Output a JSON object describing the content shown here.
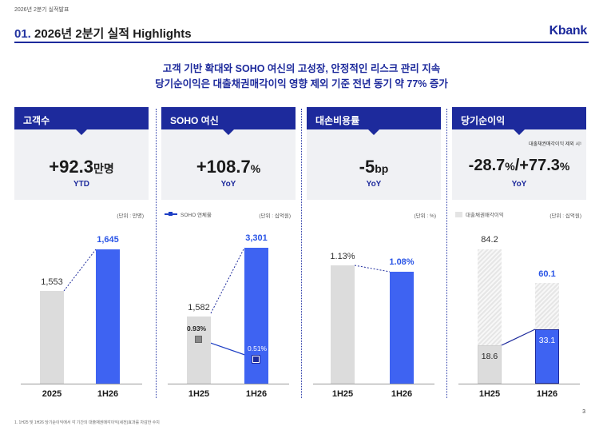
{
  "doc_label": "2026년 2분기 실적발표",
  "header": {
    "num": "01.",
    "title": "2026년 2분기 실적 Highlights",
    "logo": "Kbank"
  },
  "headline": {
    "line1": "고객 기반 확대와 SOHO 여신의 고성장, 안정적인 리스크 관리 지속",
    "line2": "당기순이익은 대출채권매각이익 영향 제외 기준 전년 동기 약 77% 증가"
  },
  "panels": [
    {
      "title": "고객수",
      "kpi_value": "+92.3",
      "kpi_unit": "만명",
      "kpi_sub": "YTD",
      "unit_label": "(단위 : 만명)",
      "chart": {
        "categories": [
          "2025",
          "1H26"
        ],
        "values": [
          1553,
          1645
        ],
        "labels": [
          "1,553",
          "1,645"
        ]
      }
    },
    {
      "title": "SOHO 여신",
      "kpi_value": "+108.7",
      "kpi_unit": "%",
      "kpi_sub": "YoY",
      "unit_label": "(단위 : 십억원)",
      "legend": "SOHO 연체율",
      "chart": {
        "categories": [
          "1H25",
          "1H26"
        ],
        "values": [
          1582,
          3301
        ],
        "labels": [
          "1,582",
          "3,301"
        ],
        "line_values": [
          0.93,
          0.51
        ],
        "line_labels": [
          "0.93%",
          "0.51%"
        ]
      }
    },
    {
      "title": "대손비용률",
      "kpi_value": "-5",
      "kpi_unit": "bp",
      "kpi_sub": "YoY",
      "unit_label": "(단위 : %)",
      "chart": {
        "categories": [
          "1H25",
          "1H26"
        ],
        "values": [
          1.13,
          1.08
        ],
        "labels": [
          "1.13%",
          "1.08%"
        ]
      }
    },
    {
      "title": "당기순이익",
      "kpi_value_a": "-28.7",
      "kpi_unit_a": "%",
      "kpi_sep": "/",
      "kpi_value_b": "+77.3",
      "kpi_unit_b": "%",
      "kpi_sub": "YoY",
      "kpi_note": "대출채권매각이익 제외 시¹",
      "unit_label": "(단위 : 십억원)",
      "legend": "대출채권매각이익",
      "chart": {
        "categories": [
          "1H25",
          "1H26"
        ],
        "totals": [
          84.2,
          60.1
        ],
        "total_labels": [
          "84.2",
          "60.1"
        ],
        "base_values": [
          18.6,
          33.1
        ],
        "base_labels": [
          "18.6",
          "33.1"
        ]
      }
    }
  ],
  "footnote": "1. 1H25 및 1H26 당기순이익에서 각 기간의 대출채권매각이익(세전)효과를 차감한 수치",
  "page_number": "3",
  "colors": {
    "brand": "#1d2a9c",
    "bar_blue": "#3e63f2",
    "bar_gray": "#dcdcdc"
  }
}
